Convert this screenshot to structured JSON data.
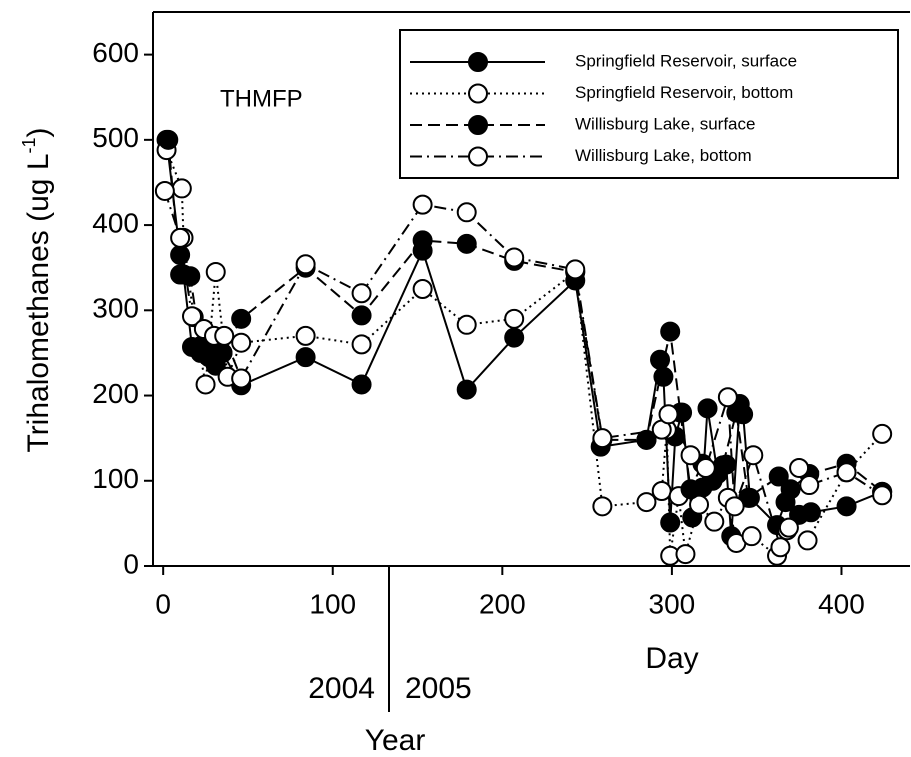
{
  "chart_data": {
    "type": "line",
    "annotation": "THMFP",
    "xlabel": "Day",
    "ylabel": {
      "text": "Trihalomethanes (ug L",
      "superscript": "-1",
      "suffix": ")"
    },
    "year_axis": {
      "label": "Year",
      "labels": [
        "2004",
        "2005"
      ]
    },
    "xlim": [
      -6,
      441
    ],
    "ylim": [
      0,
      650
    ],
    "xticks": [
      0,
      100,
      200,
      300,
      400
    ],
    "yticks": [
      0,
      100,
      200,
      300,
      400,
      500,
      600
    ],
    "legend": "upper right",
    "series": [
      {
        "name": "Springfield Reservoir, surface",
        "color": "#000000",
        "marker_fill": "#000000",
        "dash": "solid",
        "x": [
          2,
          10,
          12,
          17,
          22,
          27,
          31,
          35,
          46,
          84,
          117,
          153,
          179,
          207,
          243,
          258,
          285,
          293,
          295,
          299,
          302,
          306,
          312,
          318,
          321,
          327,
          332,
          335,
          340,
          342,
          346,
          362,
          367,
          375,
          382,
          403,
          424
        ],
        "values": [
          500,
          365,
          342,
          257,
          250,
          245,
          235,
          250,
          212,
          245,
          213,
          370,
          207,
          268,
          335,
          140,
          148,
          242,
          222,
          51,
          152,
          180,
          57,
          92,
          185,
          108,
          119,
          35,
          190,
          178,
          80,
          48,
          75,
          60,
          63,
          70,
          87
        ]
      },
      {
        "name": "Springfield Reservoir, bottom",
        "color": "#000000",
        "marker_fill": "#ffffff",
        "dash": "dotted",
        "x": [
          2,
          11,
          12,
          18,
          25,
          31,
          38,
          46,
          84,
          117,
          153,
          179,
          207,
          243,
          259,
          285,
          294,
          297,
          299,
          304,
          308,
          316,
          325,
          333,
          338,
          347,
          362,
          368,
          380,
          403,
          424
        ],
        "values": [
          488,
          443,
          385,
          292,
          213,
          345,
          222,
          262,
          270,
          260,
          325,
          283,
          290,
          345,
          70,
          75,
          88,
          160,
          12,
          82,
          14,
          72,
          52,
          80,
          27,
          35,
          12,
          42,
          30,
          110,
          155
        ]
      },
      {
        "name": "Willisburg Lake, surface",
        "color": "#000000",
        "marker_fill": "#000000",
        "dash": "dashed",
        "x": [
          3,
          10,
          16,
          22,
          30,
          35,
          46,
          84,
          117,
          153,
          179,
          207,
          243,
          259,
          285,
          299,
          305,
          311,
          318,
          324,
          330,
          338,
          345,
          363,
          370,
          381,
          403,
          424
        ],
        "values": [
          500,
          342,
          340,
          258,
          260,
          250,
          290,
          350,
          294,
          382,
          378,
          358,
          345,
          148,
          148,
          275,
          180,
          90,
          120,
          100,
          118,
          180,
          80,
          105,
          90,
          108,
          120,
          87
        ]
      },
      {
        "name": "Willisburg Lake, bottom",
        "color": "#000000",
        "marker_fill": "#ffffff",
        "dash": "dashdot",
        "x": [
          1,
          10,
          17,
          24,
          30,
          36,
          46,
          84,
          117,
          153,
          179,
          207,
          243,
          259,
          294,
          298,
          311,
          320,
          333,
          337,
          348,
          364,
          369,
          375,
          381,
          403,
          424
        ],
        "values": [
          440,
          385,
          293,
          278,
          270,
          270,
          220,
          354,
          320,
          424,
          415,
          362,
          348,
          150,
          160,
          178,
          130,
          115,
          198,
          70,
          130,
          22,
          45,
          115,
          95,
          110,
          83
        ]
      }
    ]
  }
}
